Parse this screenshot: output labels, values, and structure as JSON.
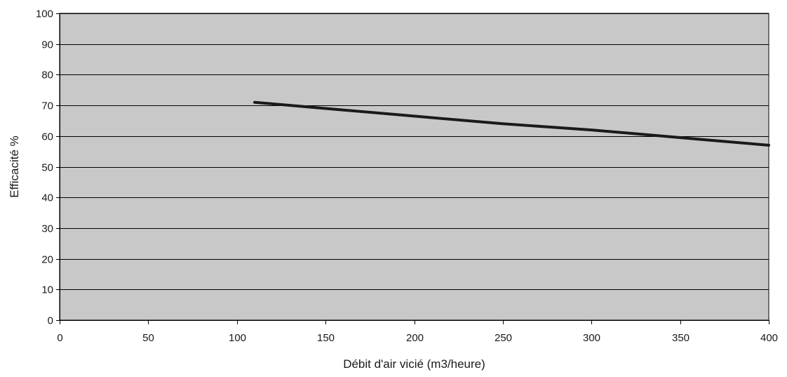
{
  "chart_data": {
    "type": "line",
    "title": "",
    "xlabel": "Débit d'air vicié (m3/heure)",
    "ylabel": "Efficacité %",
    "xlim": [
      0,
      400
    ],
    "ylim": [
      0,
      100
    ],
    "x_ticks": [
      "0",
      "50",
      "100",
      "150",
      "200",
      "250",
      "300",
      "350",
      "400"
    ],
    "y_ticks": [
      "0",
      "10",
      "20",
      "30",
      "40",
      "50",
      "60",
      "70",
      "80",
      "90",
      "100"
    ],
    "grid": true,
    "legend": "none",
    "series": [
      {
        "x": [
          110,
          150,
          200,
          250,
          300,
          350,
          400
        ],
        "y": [
          71,
          69,
          66.5,
          64,
          62,
          59.5,
          57
        ],
        "color": "#1a1a1a"
      }
    ],
    "colors": {
      "plot_background": "#c8c8c8",
      "gridline": "#000000",
      "line": "#1a1a1a"
    }
  }
}
